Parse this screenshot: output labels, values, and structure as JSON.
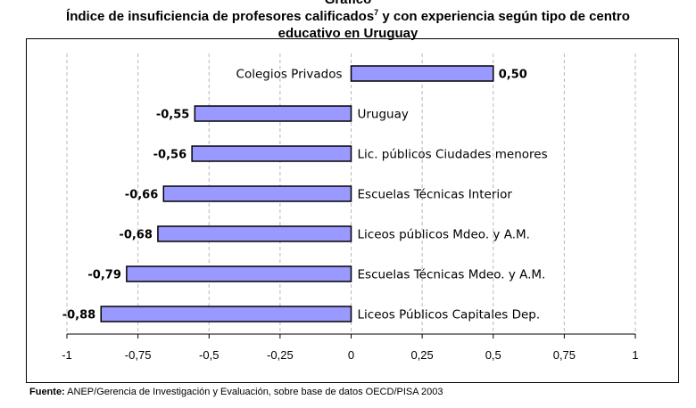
{
  "title": {
    "top": "Gráfico",
    "line1": "Índice de insuficiencia de profesores calificados",
    "footnote_mark": "7",
    "line1_end": " y con experiencia según tipo de centro",
    "line2": "educativo en Uruguay"
  },
  "source": {
    "label": "Fuente:",
    "text": " ANEP/Gerencia de Investigación y Evaluación, sobre base de datos OECD/PISA 2003"
  },
  "colors": {
    "bar_fill": "#9999ff",
    "bar_stroke": "#000000",
    "plot_bg": "#ffffff",
    "grid": "#b8b8b8"
  },
  "chart_data": {
    "type": "bar",
    "orientation": "horizontal",
    "categories": [
      "Colegios Privados",
      "Uruguay",
      "Lic. públicos Ciudades menores",
      "Escuelas Técnicas Interior",
      "Liceos públicos Mdeo. y A.M.",
      "Escuelas Técnicas Mdeo. y A.M.",
      "Liceos Públicos Capitales Dep."
    ],
    "values": [
      0.5,
      -0.55,
      -0.56,
      -0.66,
      -0.68,
      -0.79,
      -0.88
    ],
    "value_labels": [
      "0,50",
      "-0,55",
      "-0,56",
      "-0,66",
      "-0,68",
      "-0,79",
      "-0,88"
    ],
    "xlim": [
      -1,
      1
    ],
    "xticks": [
      -1,
      -0.75,
      -0.5,
      -0.25,
      0,
      0.25,
      0.5,
      0.75,
      1
    ],
    "xtick_labels": [
      "-1",
      "-0,75",
      "-0,5",
      "-0,25",
      "0",
      "0,25",
      "0,5",
      "0,75",
      "1"
    ],
    "grid": "vertical dashed",
    "legend": "none"
  }
}
